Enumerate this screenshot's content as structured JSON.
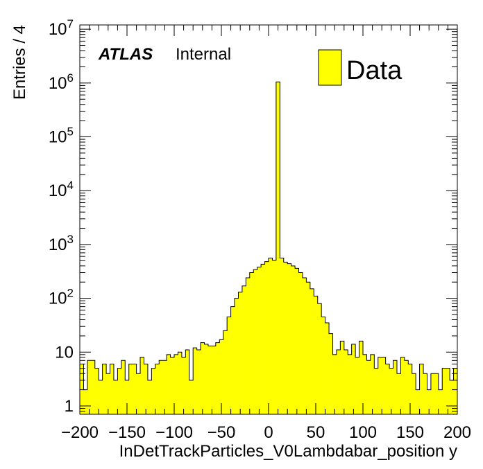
{
  "chart_data": {
    "type": "bar",
    "title": "",
    "xlabel": "InDetTrackParticles_V0Lambdabar_position y",
    "ylabel": "Entries / 4",
    "xlim": [
      -200,
      200
    ],
    "ylim": [
      0.7,
      12000000
    ],
    "yscale": "log",
    "grid": false,
    "legend_position": "top-right",
    "bin_width": 4,
    "x_ticks": [
      -200,
      -150,
      -100,
      -50,
      0,
      50,
      100,
      150,
      200
    ],
    "x_tick_labels": [
      "−200",
      "−150",
      "−100",
      "−50",
      "0",
      "50",
      "100",
      "150",
      "200"
    ],
    "y_ticks": [
      1,
      10,
      100,
      1000,
      10000,
      100000,
      1000000,
      10000000
    ],
    "y_tick_labels": [
      {
        "base": "1",
        "exp": ""
      },
      {
        "base": "10",
        "exp": ""
      },
      {
        "base": "10",
        "exp": "2"
      },
      {
        "base": "10",
        "exp": "3"
      },
      {
        "base": "10",
        "exp": "4"
      },
      {
        "base": "10",
        "exp": "5"
      },
      {
        "base": "10",
        "exp": "6"
      },
      {
        "base": "10",
        "exp": "7"
      }
    ],
    "atlas_label": "ATLAS",
    "atlas_sublabel": "Internal",
    "series": [
      {
        "name": "Data",
        "color": "#ffff00",
        "edge_color": "#000000",
        "values": [
          6,
          2,
          7,
          7,
          5,
          3,
          6,
          4,
          6,
          3,
          5,
          7,
          3,
          6,
          6,
          4,
          8,
          6,
          3,
          5,
          6,
          7,
          7,
          9,
          8,
          9,
          10,
          8,
          11,
          3,
          12,
          11,
          15,
          14,
          13,
          13,
          15,
          17,
          25,
          45,
          70,
          100,
          130,
          170,
          240,
          300,
          340,
          380,
          430,
          480,
          560,
          510,
          1050000,
          560,
          470,
          440,
          400,
          360,
          300,
          240,
          200,
          150,
          110,
          80,
          45,
          35,
          22,
          9,
          11,
          16,
          11,
          9,
          14,
          8,
          16,
          9,
          7,
          9,
          5,
          8,
          8,
          6,
          5,
          7,
          4,
          8,
          7,
          6,
          4,
          2,
          6,
          4,
          2,
          4,
          4,
          2,
          5,
          5,
          3,
          5
        ]
      }
    ]
  }
}
